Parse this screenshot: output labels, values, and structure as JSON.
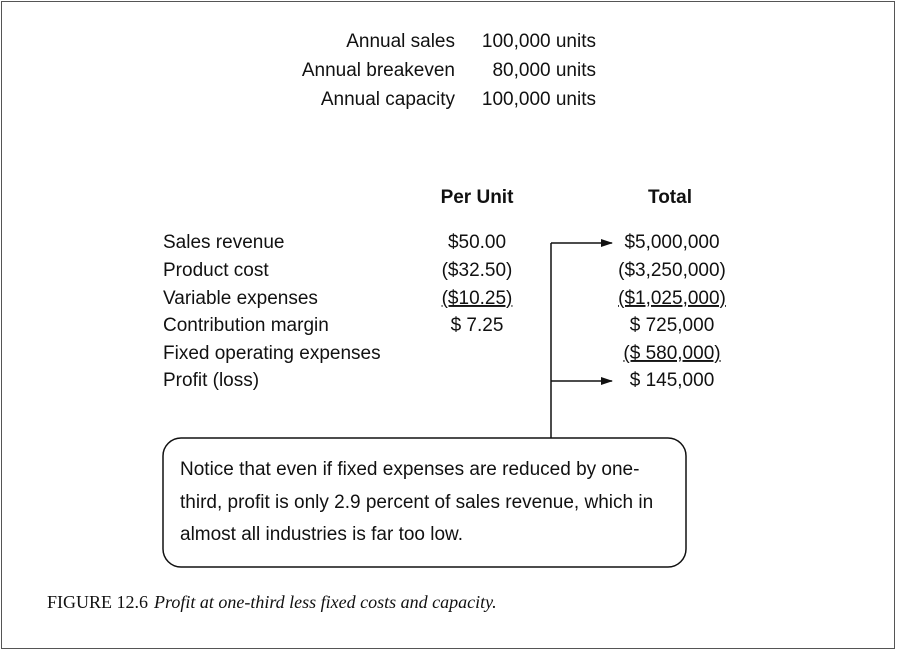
{
  "summary": [
    {
      "label": "Annual sales",
      "value": "100,000 units"
    },
    {
      "label": "Annual breakeven",
      "value": "80,000 units"
    },
    {
      "label": "Annual capacity",
      "value": "100,000 units"
    }
  ],
  "table": {
    "headers": [
      "Per Unit",
      "Total"
    ],
    "rows": [
      [
        "Sales revenue",
        "$50.00",
        "$5,000,000"
      ],
      [
        "Product cost",
        "($32.50)",
        "($3,250,000)"
      ],
      [
        "Variable expenses",
        "($10.25)",
        "($1,025,000)"
      ],
      [
        "Contribution margin",
        "$ 7.25",
        "$ 725,000"
      ],
      [
        "Fixed operating expenses",
        "",
        "($ 580,000)"
      ],
      [
        "Profit (loss)",
        "",
        "$ 145,000"
      ]
    ]
  },
  "note": {
    "lines": [
      "Notice that even if fixed expenses are reduced by one-",
      "third, profit is only 2.9 percent of sales revenue, which in",
      "almost all industries is far too low."
    ]
  },
  "caption": {
    "label": "FIGURE 12.6",
    "text": "Profit at one-third less fixed costs and capacity."
  }
}
